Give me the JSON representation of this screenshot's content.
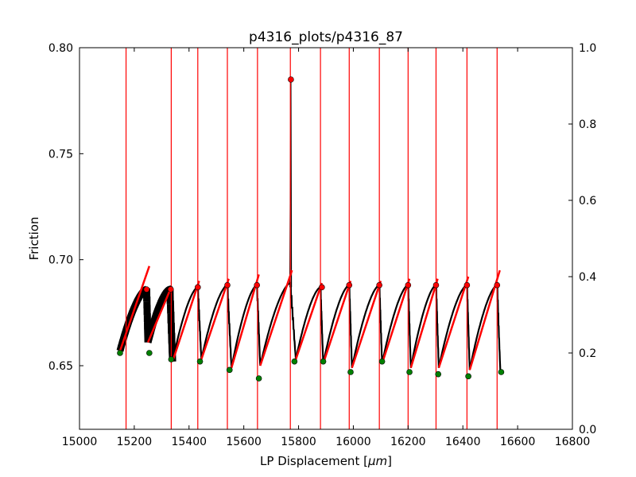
{
  "chart_data": {
    "type": "line",
    "title": "p4316_plots/p4316_87",
    "xlabel_prefix": "LP Displacement [",
    "xlabel_unit": "μm",
    "xlabel_suffix": "]",
    "ylabel": "Friction",
    "xlim": [
      15000,
      16800
    ],
    "ylim": [
      0.62,
      0.8
    ],
    "y2lim": [
      0.0,
      1.0
    ],
    "xticks": [
      "15000",
      "15200",
      "15400",
      "15600",
      "15800",
      "16000",
      "16200",
      "16400",
      "16600",
      "16800"
    ],
    "yticks": [
      "0.65",
      "0.70",
      "0.75",
      "0.80"
    ],
    "y2ticks": [
      "0.0",
      "0.2",
      "0.4",
      "0.6",
      "0.8",
      "1.0"
    ],
    "grid": false,
    "colors": {
      "friction": "#000000",
      "vlines": "#ff0000",
      "fits": "#ff0000",
      "peaks": "#ff0000",
      "minima": "#008000"
    },
    "vlines_x": [
      15170,
      15335,
      15432,
      15540,
      15650,
      15770,
      15880,
      15985,
      16095,
      16200,
      16302,
      16415,
      16525
    ],
    "cycles": [
      {
        "x0": 15148,
        "y0": 0.657,
        "x1": 15245,
        "y1": 0.686,
        "fit": [
          [
            15148,
            0.657
          ],
          [
            15255,
            0.697
          ]
        ]
      },
      {
        "x0": 15250,
        "y0": 0.661,
        "x1": 15330,
        "y1": 0.686,
        "fit": [
          [
            15250,
            0.661
          ],
          [
            15335,
            0.687
          ]
        ]
      },
      {
        "x0": 15340,
        "y0": 0.652,
        "x1": 15432,
        "y1": 0.687,
        "fit": [
          [
            15340,
            0.652
          ],
          [
            15437,
            0.69
          ]
        ]
      },
      {
        "x0": 15445,
        "y0": 0.653,
        "x1": 15540,
        "y1": 0.688,
        "fit": [
          [
            15445,
            0.653
          ],
          [
            15545,
            0.691
          ]
        ]
      },
      {
        "x0": 15555,
        "y0": 0.649,
        "x1": 15648,
        "y1": 0.688,
        "fit": [
          [
            15555,
            0.649
          ],
          [
            15655,
            0.693
          ]
        ]
      },
      {
        "x0": 15660,
        "y0": 0.65,
        "x1": 15770,
        "y1": 0.689,
        "fit": [
          [
            15660,
            0.65
          ],
          [
            15776,
            0.695
          ]
        ]
      },
      {
        "x0": 15790,
        "y0": 0.653,
        "x1": 15880,
        "y1": 0.687,
        "fit": [
          [
            15790,
            0.653
          ],
          [
            15885,
            0.689
          ]
        ]
      },
      {
        "x0": 15890,
        "y0": 0.651,
        "x1": 15985,
        "y1": 0.688,
        "fit": [
          [
            15890,
            0.651
          ],
          [
            15990,
            0.69
          ]
        ]
      },
      {
        "x0": 15995,
        "y0": 0.649,
        "x1": 16095,
        "y1": 0.688,
        "fit": [
          [
            15995,
            0.649
          ],
          [
            16100,
            0.69
          ]
        ]
      },
      {
        "x0": 16105,
        "y0": 0.651,
        "x1": 16200,
        "y1": 0.688,
        "fit": [
          [
            16105,
            0.651
          ],
          [
            16205,
            0.691
          ]
        ]
      },
      {
        "x0": 16210,
        "y0": 0.649,
        "x1": 16302,
        "y1": 0.688,
        "fit": [
          [
            16210,
            0.649
          ],
          [
            16308,
            0.691
          ]
        ]
      },
      {
        "x0": 16312,
        "y0": 0.649,
        "x1": 16415,
        "y1": 0.688,
        "fit": [
          [
            16312,
            0.649
          ],
          [
            16420,
            0.692
          ]
        ]
      },
      {
        "x0": 16425,
        "y0": 0.648,
        "x1": 16525,
        "y1": 0.688,
        "fit": [
          [
            16425,
            0.648
          ],
          [
            16535,
            0.695
          ]
        ]
      }
    ],
    "spike": {
      "x": 15772,
      "base": 0.687,
      "peak": 0.785
    },
    "peaks": [
      [
        15245,
        0.686
      ],
      [
        15333,
        0.686
      ],
      [
        15432,
        0.687
      ],
      [
        15540,
        0.688
      ],
      [
        15648,
        0.688
      ],
      [
        15772,
        0.785
      ],
      [
        15885,
        0.687
      ],
      [
        15985,
        0.688
      ],
      [
        16095,
        0.688
      ],
      [
        16200,
        0.688
      ],
      [
        16302,
        0.688
      ],
      [
        16415,
        0.688
      ],
      [
        16525,
        0.688
      ]
    ],
    "minima": [
      [
        15148,
        0.656
      ],
      [
        15255,
        0.656
      ],
      [
        15335,
        0.653
      ],
      [
        15440,
        0.652
      ],
      [
        15548,
        0.648
      ],
      [
        15655,
        0.644
      ],
      [
        15785,
        0.652
      ],
      [
        15890,
        0.652
      ],
      [
        15990,
        0.647
      ],
      [
        16105,
        0.652
      ],
      [
        16205,
        0.647
      ],
      [
        16310,
        0.646
      ],
      [
        16420,
        0.645
      ],
      [
        16540,
        0.647
      ]
    ]
  }
}
